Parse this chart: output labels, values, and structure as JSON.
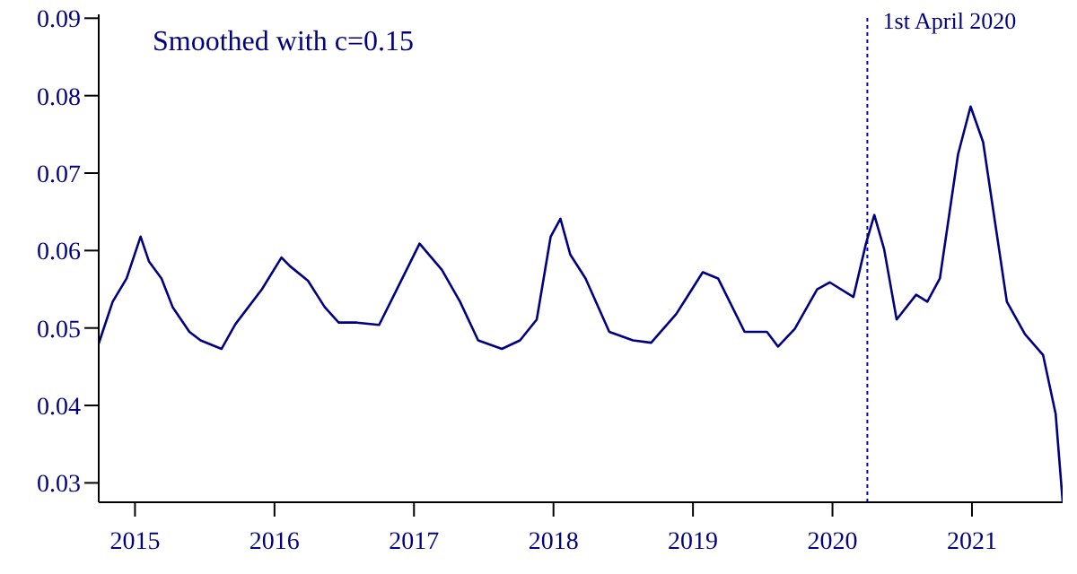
{
  "chart_data": {
    "type": "line",
    "annotations": [
      "Smoothed with c=0.15"
    ],
    "x": [
      2014.74,
      2014.84,
      2014.94,
      2015.04,
      2015.1,
      2015.19,
      2015.27,
      2015.39,
      2015.47,
      2015.62,
      2015.72,
      2015.91,
      2016.05,
      2016.11,
      2016.24,
      2016.36,
      2016.46,
      2016.59,
      2016.75,
      2016.85,
      2017.04,
      2017.2,
      2017.33,
      2017.46,
      2017.63,
      2017.76,
      2017.88,
      2017.98,
      2018.05,
      2018.12,
      2018.23,
      2018.4,
      2018.57,
      2018.7,
      2018.88,
      2019.07,
      2019.18,
      2019.37,
      2019.53,
      2019.61,
      2019.73,
      2019.89,
      2019.98,
      2020.15,
      2020.24,
      2020.3,
      2020.37,
      2020.46,
      2020.6,
      2020.68,
      2020.77,
      2020.9,
      2020.99,
      2021.08,
      2021.25,
      2021.38,
      2021.51,
      2021.6,
      2021.65
    ],
    "series": [
      {
        "color": "#000080",
        "values": [
          0.048,
          0.0534,
          0.0564,
          0.0618,
          0.0586,
          0.0564,
          0.0527,
          0.0495,
          0.0484,
          0.0473,
          0.0505,
          0.055,
          0.0591,
          0.058,
          0.0561,
          0.0527,
          0.0507,
          0.0507,
          0.0504,
          0.054,
          0.0609,
          0.0575,
          0.0534,
          0.0484,
          0.0473,
          0.0484,
          0.0511,
          0.0618,
          0.0641,
          0.0595,
          0.0564,
          0.0495,
          0.0484,
          0.0481,
          0.0518,
          0.0572,
          0.0564,
          0.0495,
          0.0495,
          0.0476,
          0.0499,
          0.055,
          0.0559,
          0.054,
          0.0609,
          0.0646,
          0.0602,
          0.0511,
          0.0543,
          0.0534,
          0.0564,
          0.0724,
          0.0786,
          0.074,
          0.0534,
          0.0492,
          0.0465,
          0.0389,
          0.0276
        ]
      }
    ],
    "xlim": [
      2014.74,
      2021.65
    ],
    "xticks": [
      2015,
      2016,
      2017,
      2018,
      2019,
      2020,
      2021
    ],
    "ylim": [
      0.0275,
      0.0905
    ],
    "yticks": [
      0.03,
      0.04,
      0.05,
      0.06,
      0.07,
      0.08,
      0.09
    ],
    "ref_lines": [
      {
        "axis": "x",
        "value": 2020.25,
        "label": "1st April 2020",
        "color": "#0000cc",
        "line_style": "dotted"
      }
    ],
    "grid": false,
    "legend": false,
    "marker": "none",
    "line_style": "solid"
  }
}
